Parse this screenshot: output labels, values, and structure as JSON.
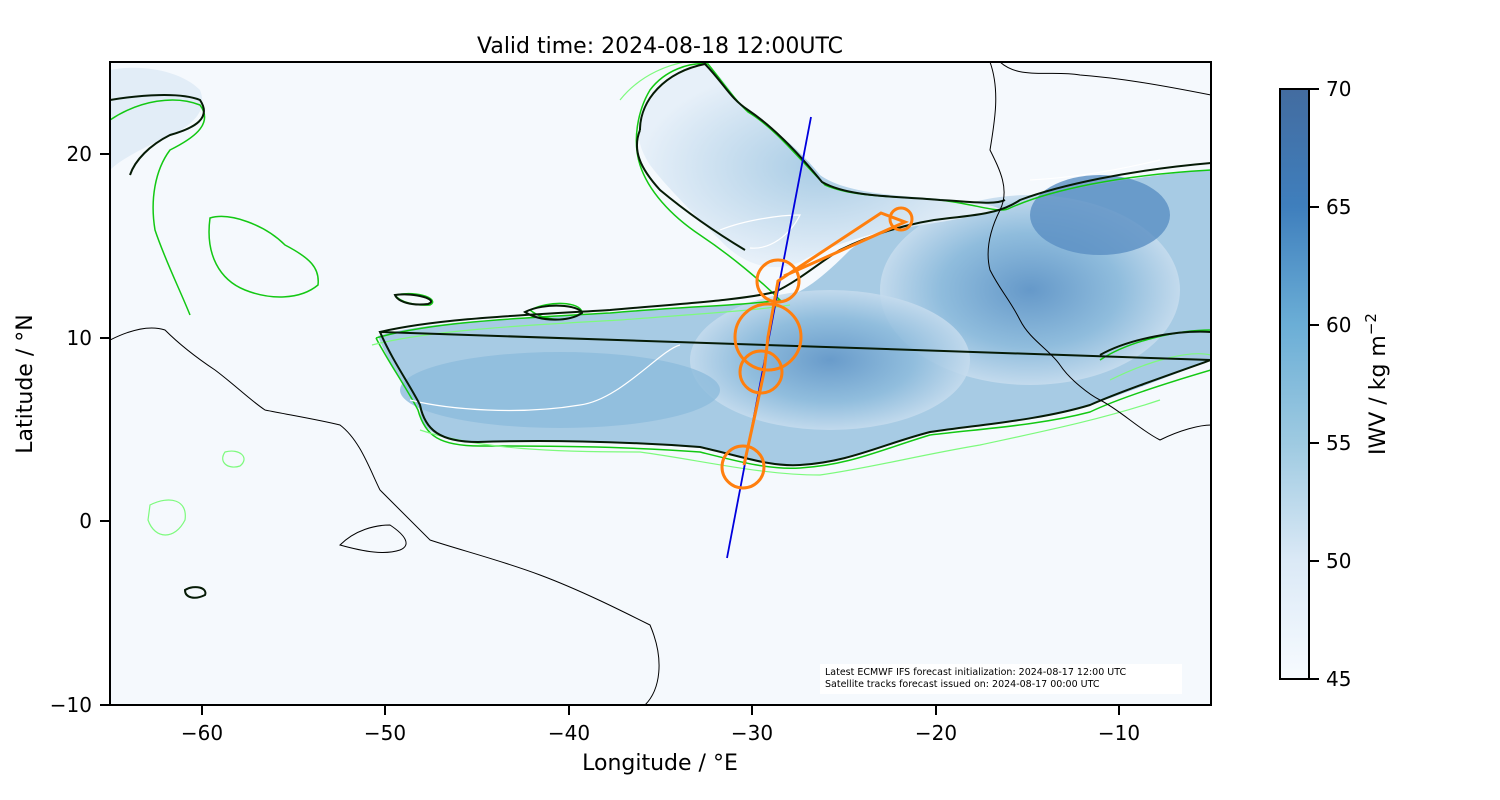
{
  "title": "Valid time: 2024-08-18 12:00UTC",
  "axes": {
    "xlabel": "Longitude / °E",
    "ylabel": "Latitude / °N",
    "x_ticks": [
      "−60",
      "−50",
      "−40",
      "−30",
      "−20",
      "−10"
    ],
    "y_ticks": [
      "20",
      "10",
      "0",
      "−10"
    ]
  },
  "colorbar": {
    "label": "IWV / kg m",
    "label_exponent": "−2",
    "ticks": [
      "70",
      "65",
      "60",
      "55",
      "50",
      "45"
    ]
  },
  "annotation": {
    "line1": "Latest ECMWF IFS forecast initialization: 2024-08-17 12:00 UTC",
    "line2": "Satellite tracks forecast issued on: 2024-08-17 00:00 UTC"
  },
  "chart_data": {
    "type": "map",
    "xlim": [
      -65,
      -5
    ],
    "ylim": [
      -10,
      25
    ],
    "colorbar_range": [
      45,
      70
    ],
    "colormap": "Blues",
    "colors": {
      "iwv_contour": "#000000",
      "contour_green_dark": "#13c813",
      "contour_green_light": "#7dfa7d",
      "contour_white": "#ffffff",
      "satellite_track": "#0000dd",
      "flight_track": "#ff7f0e",
      "coastline": "#000000"
    },
    "satellite_track": [
      [
        -31.3,
        -2.0
      ],
      [
        -26.9,
        22.1
      ]
    ],
    "flight_track": [
      [
        -30.3,
        3.0
      ],
      [
        -29.9,
        6.0
      ],
      [
        -29.5,
        8.5
      ],
      [
        -29.0,
        10.0
      ],
      [
        -28.5,
        13.0
      ],
      [
        -22.8,
        16.8
      ],
      [
        -21.6,
        16.0
      ],
      [
        -28.3,
        13.2
      ]
    ],
    "circles": [
      {
        "lon": -28.3,
        "lat": 13.2,
        "radius_deg": 1.2
      },
      {
        "lon": -29.0,
        "lat": 10.0,
        "radius_deg": 1.8
      },
      {
        "lon": -29.3,
        "lat": 8.1,
        "radius_deg": 1.15
      },
      {
        "lon": -30.5,
        "lat": 3.0,
        "radius_deg": 1.15
      },
      {
        "lon": -21.9,
        "lat": 16.5,
        "radius_deg": 0.6
      }
    ]
  }
}
